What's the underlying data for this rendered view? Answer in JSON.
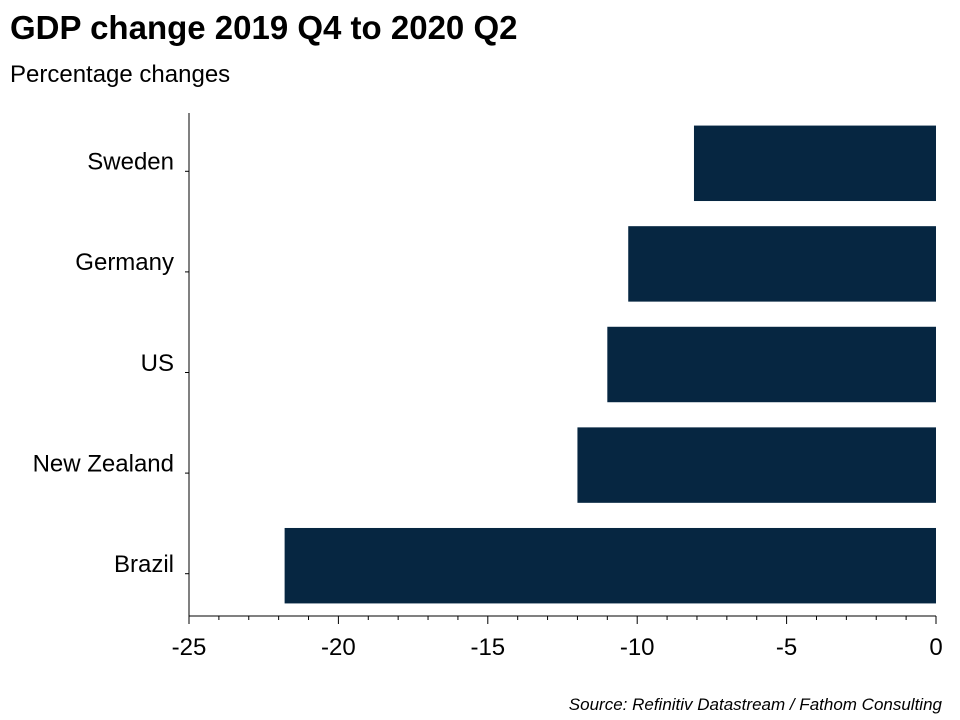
{
  "title": "GDP change 2019 Q4 to 2020 Q2",
  "subtitle": "Percentage changes",
  "source": "Source: Refinitiv Datastream / Fathom Consulting",
  "colors": {
    "bar": "#062641",
    "axis": "#000000",
    "text": "#000000"
  },
  "chart_data": {
    "type": "bar",
    "orientation": "horizontal",
    "title": "GDP change 2019 Q4 to 2020 Q2",
    "subtitle": "Percentage changes",
    "categories": [
      "Sweden",
      "Germany",
      "US",
      "New Zealand",
      "Brazil"
    ],
    "values": [
      -8.1,
      -10.3,
      -11.0,
      -12.0,
      -21.8
    ],
    "xlim": [
      -25,
      0
    ],
    "x_ticks": [
      -25,
      -20,
      -15,
      -10,
      -5,
      0
    ],
    "x_tick_labels": [
      "-25",
      "-20",
      "-15",
      "-10",
      "-5",
      "0"
    ],
    "xlabel": "",
    "ylabel": "",
    "grid": false,
    "legend": "none"
  }
}
